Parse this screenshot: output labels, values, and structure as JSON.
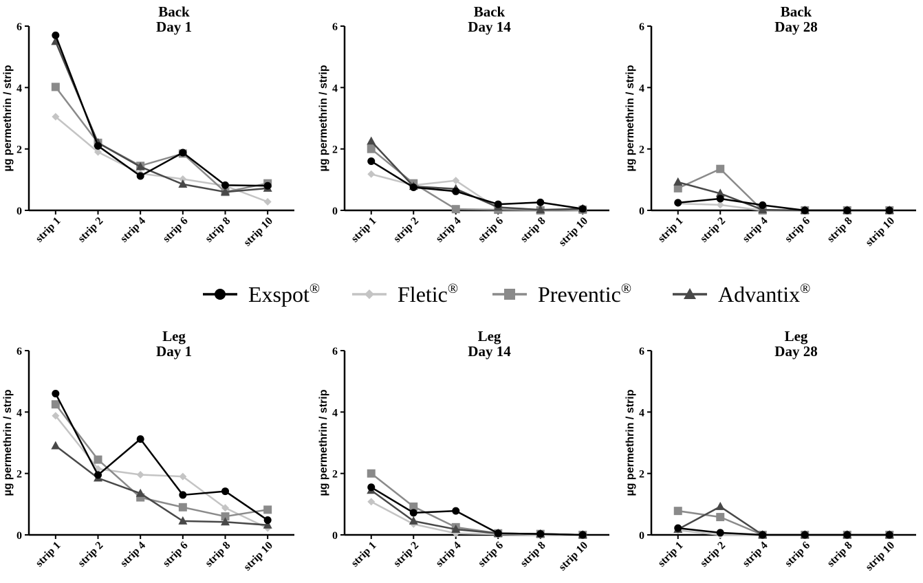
{
  "series_style": [
    {
      "name": "Exspot",
      "mark": "®",
      "color": "#000000",
      "marker": "circle"
    },
    {
      "name": "Fletic",
      "mark": "®",
      "color": "#c4c4c4",
      "marker": "diamond"
    },
    {
      "name": "Preventic",
      "mark": "®",
      "color": "#8a8a8a",
      "marker": "square"
    },
    {
      "name": "Advantix",
      "mark": "®",
      "color": "#484848",
      "marker": "triangle"
    }
  ],
  "chart_data": [
    {
      "type": "line",
      "title": [
        "Back",
        "Day 1"
      ],
      "ylabel": "µg permethrin / strip",
      "categories": [
        "strip 1",
        "strip 2",
        "strip 4",
        "strip 6",
        "strip 8",
        "strip 10"
      ],
      "yticks": [
        "0",
        "2",
        "4",
        "6"
      ],
      "ylim": [
        0,
        6
      ],
      "series": [
        {
          "name": "Exspot",
          "values": [
            5.7,
            2.1,
            1.12,
            1.88,
            0.82,
            0.8
          ]
        },
        {
          "name": "Fletic",
          "values": [
            3.05,
            1.9,
            1.2,
            1.02,
            0.8,
            0.28
          ]
        },
        {
          "name": "Preventic",
          "values": [
            4.02,
            2.2,
            1.45,
            1.85,
            0.6,
            0.88
          ]
        },
        {
          "name": "Advantix",
          "values": [
            5.5,
            2.2,
            1.42,
            0.85,
            0.6,
            0.72
          ]
        }
      ]
    },
    {
      "type": "line",
      "title": [
        "Back",
        "Day 14"
      ],
      "ylabel": "µg permethrin / strip",
      "categories": [
        "strip 1",
        "strip 2",
        "strip 4",
        "strip 6",
        "strip 8",
        "strip 10"
      ],
      "yticks": [
        "0",
        "2",
        "4",
        "6"
      ],
      "ylim": [
        0,
        6
      ],
      "series": [
        {
          "name": "Exspot",
          "values": [
            1.6,
            0.75,
            0.62,
            0.2,
            0.26,
            0.05
          ]
        },
        {
          "name": "Fletic",
          "values": [
            1.18,
            0.82,
            0.97,
            0.05,
            0.02,
            0.0
          ]
        },
        {
          "name": "Preventic",
          "values": [
            2.0,
            0.88,
            0.04,
            0.02,
            0.0,
            0.02
          ]
        },
        {
          "name": "Advantix",
          "values": [
            2.25,
            0.78,
            0.7,
            0.1,
            0.02,
            0.05
          ]
        }
      ]
    },
    {
      "type": "line",
      "title": [
        "Back",
        "Day 28"
      ],
      "ylabel": "µg permethrin / strip",
      "categories": [
        "strip 1",
        "strip 2",
        "strip 4",
        "strip 6",
        "strip 8",
        "strip 10"
      ],
      "yticks": [
        "0",
        "2",
        "4",
        "6"
      ],
      "ylim": [
        0,
        6
      ],
      "series": [
        {
          "name": "Exspot",
          "values": [
            0.25,
            0.38,
            0.17,
            0.0,
            0.0,
            0.0
          ]
        },
        {
          "name": "Fletic",
          "values": [
            0.22,
            0.18,
            0.0,
            0.0,
            0.0,
            0.0
          ]
        },
        {
          "name": "Preventic",
          "values": [
            0.72,
            1.35,
            0.0,
            0.0,
            0.0,
            0.0
          ]
        },
        {
          "name": "Advantix",
          "values": [
            0.92,
            0.55,
            0.02,
            0.0,
            0.0,
            0.0
          ]
        }
      ]
    },
    {
      "type": "line",
      "title": [
        "Leg",
        "Day 1"
      ],
      "ylabel": "µg permethrin / strip",
      "categories": [
        "strip 1",
        "strip 2",
        "strip 4",
        "strip 6",
        "strip 8",
        "strip 10"
      ],
      "yticks": [
        "0",
        "2",
        "4",
        "6"
      ],
      "ylim": [
        0,
        6
      ],
      "series": [
        {
          "name": "Exspot",
          "values": [
            4.6,
            1.95,
            3.12,
            1.3,
            1.42,
            0.48
          ]
        },
        {
          "name": "Fletic",
          "values": [
            3.88,
            2.15,
            1.96,
            1.9,
            0.88,
            0.22
          ]
        },
        {
          "name": "Preventic",
          "values": [
            4.25,
            2.45,
            1.22,
            0.9,
            0.6,
            0.82
          ]
        },
        {
          "name": "Advantix",
          "values": [
            2.9,
            1.85,
            1.35,
            0.45,
            0.42,
            0.32
          ]
        }
      ]
    },
    {
      "type": "line",
      "title": [
        "Leg",
        "Day 14"
      ],
      "ylabel": "µg permethrin / strip",
      "categories": [
        "strip 1",
        "strip 2",
        "strip 4",
        "strip 6",
        "strip 8",
        "strip 10"
      ],
      "yticks": [
        "0",
        "2",
        "4",
        "6"
      ],
      "ylim": [
        0,
        6
      ],
      "series": [
        {
          "name": "Exspot",
          "values": [
            1.55,
            0.72,
            0.78,
            0.05,
            0.03,
            0.0
          ]
        },
        {
          "name": "Fletic",
          "values": [
            1.08,
            0.35,
            0.05,
            0.02,
            0.0,
            0.0
          ]
        },
        {
          "name": "Preventic",
          "values": [
            2.0,
            0.92,
            0.25,
            0.05,
            0.03,
            0.0
          ]
        },
        {
          "name": "Advantix",
          "values": [
            1.45,
            0.45,
            0.18,
            0.05,
            0.03,
            0.0
          ]
        }
      ]
    },
    {
      "type": "line",
      "title": [
        "Leg",
        "Day 28"
      ],
      "ylabel": "µg permethrin / strip",
      "categories": [
        "strip 1",
        "strip 2",
        "strip 4",
        "strip 6",
        "strip 8",
        "strip 10"
      ],
      "yticks": [
        "0",
        "2",
        "4",
        "6"
      ],
      "ylim": [
        0,
        6
      ],
      "series": [
        {
          "name": "Exspot",
          "values": [
            0.22,
            0.07,
            0.0,
            0.0,
            0.0,
            0.0
          ]
        },
        {
          "name": "Fletic",
          "values": [
            0.15,
            0.0,
            0.0,
            0.0,
            0.0,
            0.0
          ]
        },
        {
          "name": "Preventic",
          "values": [
            0.78,
            0.58,
            0.0,
            0.0,
            0.0,
            0.0
          ]
        },
        {
          "name": "Advantix",
          "values": [
            0.18,
            0.92,
            0.0,
            0.0,
            0.0,
            0.0
          ]
        }
      ]
    }
  ]
}
